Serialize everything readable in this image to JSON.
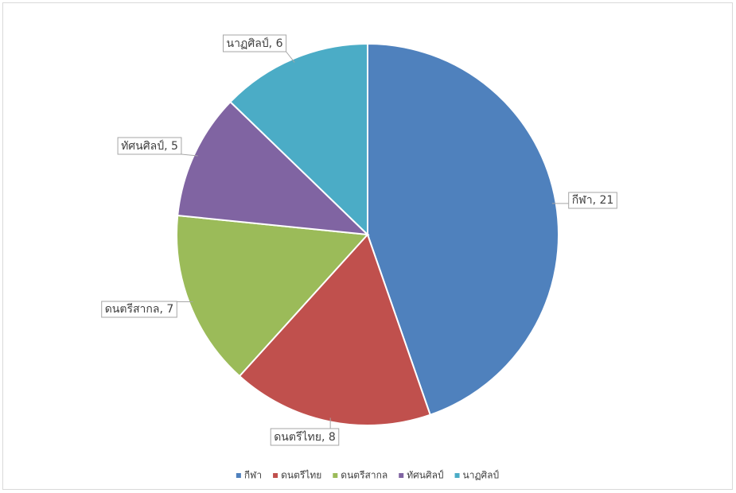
{
  "chart_data": {
    "type": "pie",
    "categories": [
      "กีฬา",
      "ดนตรีไทย",
      "ดนตรีสากล",
      "ทัศนศิลป์",
      "นาฏศิลป์"
    ],
    "values": [
      21,
      8,
      7,
      5,
      6
    ],
    "value_labels": [
      "กีฬา, 21",
      "ดนตรีไทย, 8",
      "ดนตรีสากล, 7",
      "ทัศนศิลป์, 5",
      "นาฏศิลป์, 6"
    ],
    "colors": [
      "#4f81bd",
      "#c0504d",
      "#9bbb59",
      "#8064a2",
      "#4bacc6"
    ],
    "legend": "bottom"
  }
}
